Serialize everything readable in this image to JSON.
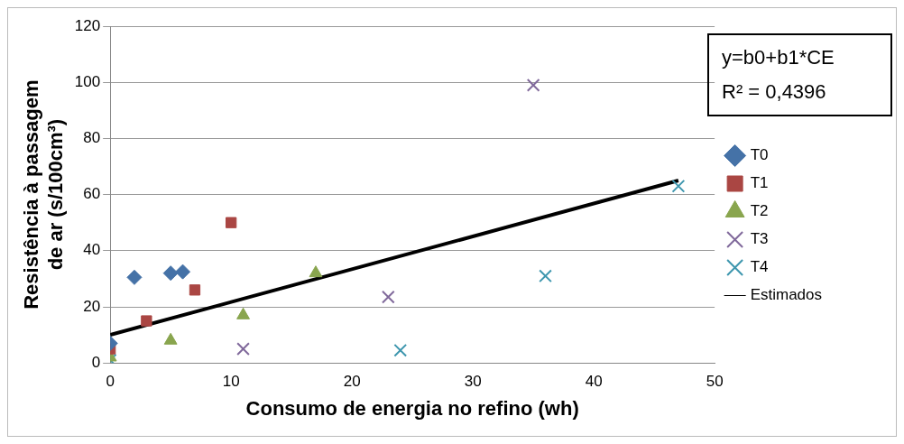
{
  "chart_data": {
    "type": "scatter",
    "xlabel": "Consumo de energia no refino (wh)",
    "ylabel": "Resistência à passagem\nde ar (s/100cm³)",
    "xlim": [
      0,
      50
    ],
    "xticks": [
      0,
      10,
      20,
      30,
      40,
      50
    ],
    "ylim": [
      0,
      120
    ],
    "yticks": [
      0,
      20,
      40,
      60,
      80,
      100,
      120
    ],
    "grid": "y",
    "legend": "right",
    "annotations": [
      "y=b0+b1*CE",
      "R² = 0,4396"
    ],
    "series": [
      {
        "name": "T0",
        "color": "#4572a7",
        "marker": "diamond",
        "x": [
          0,
          2,
          5,
          6
        ],
        "values": [
          7,
          30.5,
          32,
          32.5
        ]
      },
      {
        "name": "T1",
        "color": "#aa4643",
        "marker": "square",
        "x": [
          0,
          3,
          7,
          10
        ],
        "values": [
          5,
          15,
          26,
          50
        ]
      },
      {
        "name": "T2",
        "color": "#89a54e",
        "marker": "triangle",
        "x": [
          0,
          5,
          11,
          17
        ],
        "values": [
          2,
          8,
          17,
          32
        ]
      },
      {
        "name": "T3",
        "color": "#80699b",
        "marker": "cross",
        "x": [
          11,
          23,
          35
        ],
        "values": [
          5,
          23.5,
          99
        ]
      },
      {
        "name": "T4",
        "color": "#3d96ae",
        "marker": "cross",
        "x": [
          0,
          24,
          36,
          47
        ],
        "values": [
          1,
          4.5,
          31,
          63
        ]
      },
      {
        "name": "Estimados",
        "type": "line",
        "color": "#000000",
        "marker": "none",
        "x": [
          0,
          47
        ],
        "values": [
          10,
          65
        ]
      }
    ]
  }
}
